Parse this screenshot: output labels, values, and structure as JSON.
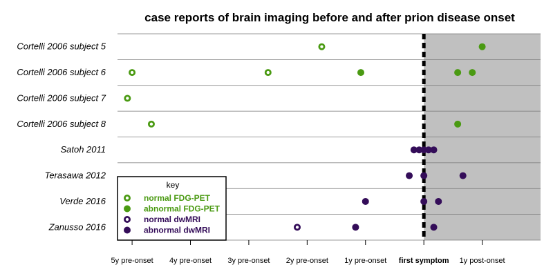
{
  "chart_data": {
    "type": "scatter",
    "title": "case reports of brain imaging before and after prion disease onset",
    "xlim": [
      -5.25,
      2.0
    ],
    "x_ticks": [
      {
        "value": -5,
        "label": "5y pre-onset",
        "bold": false
      },
      {
        "value": -4,
        "label": "4y pre-onset",
        "bold": false
      },
      {
        "value": -3,
        "label": "3y pre-onset",
        "bold": false
      },
      {
        "value": -2,
        "label": "2y pre-onset",
        "bold": false
      },
      {
        "value": -1,
        "label": "1y pre-onset",
        "bold": false
      },
      {
        "value": 0,
        "label": "first symptom",
        "bold": true
      },
      {
        "value": 1,
        "label": "1y post-onset",
        "bold": false
      }
    ],
    "post_onset_shading": {
      "from": 0,
      "to": 2.0,
      "color": "#c0c0c0"
    },
    "onset_line": {
      "x": 0,
      "style": "dashed",
      "color": "#000000"
    },
    "cases": [
      "Cortelli 2006 subject 5",
      "Cortelli 2006 subject 6",
      "Cortelli 2006 subject 7",
      "Cortelli 2006 subject 8",
      "Satoh 2011",
      "Terasawa 2012",
      "Verde 2016",
      "Zanusso 2016"
    ],
    "legend": {
      "title": "key",
      "placement": "bottom-left",
      "entries": [
        {
          "key": "normal_fdg",
          "label": "normal FDG-PET",
          "color": "#4a9a12",
          "filled": false
        },
        {
          "key": "abnormal_fdg",
          "label": "abnormal FDG-PET",
          "color": "#4a9a12",
          "filled": true
        },
        {
          "key": "normal_dw",
          "label": "normal dwMRI",
          "color": "#340d59",
          "filled": false
        },
        {
          "key": "abnormal_dw",
          "label": "abnormal dwMRI",
          "color": "#340d59",
          "filled": true
        }
      ]
    },
    "points": [
      {
        "case": 0,
        "x": -1.75,
        "type": "normal_fdg"
      },
      {
        "case": 0,
        "x": 1.0,
        "type": "abnormal_fdg"
      },
      {
        "case": 1,
        "x": -5.0,
        "type": "normal_fdg"
      },
      {
        "case": 1,
        "x": -2.67,
        "type": "normal_fdg"
      },
      {
        "case": 1,
        "x": -1.08,
        "type": "abnormal_fdg"
      },
      {
        "case": 1,
        "x": 0.58,
        "type": "abnormal_fdg"
      },
      {
        "case": 1,
        "x": 0.83,
        "type": "abnormal_fdg"
      },
      {
        "case": 2,
        "x": -5.08,
        "type": "normal_fdg"
      },
      {
        "case": 3,
        "x": -4.67,
        "type": "normal_fdg"
      },
      {
        "case": 3,
        "x": 0.58,
        "type": "abnormal_fdg"
      },
      {
        "case": 4,
        "x": -0.17,
        "type": "abnormal_dw"
      },
      {
        "case": 4,
        "x": -0.08,
        "type": "abnormal_dw"
      },
      {
        "case": 4,
        "x": 0.0,
        "type": "abnormal_dw"
      },
      {
        "case": 4,
        "x": 0.08,
        "type": "abnormal_dw"
      },
      {
        "case": 4,
        "x": 0.17,
        "type": "abnormal_dw"
      },
      {
        "case": 5,
        "x": -0.25,
        "type": "abnormal_dw"
      },
      {
        "case": 5,
        "x": 0.0,
        "type": "abnormal_dw"
      },
      {
        "case": 5,
        "x": 0.67,
        "type": "abnormal_dw"
      },
      {
        "case": 6,
        "x": -1.0,
        "type": "abnormal_dw"
      },
      {
        "case": 6,
        "x": 0.0,
        "type": "abnormal_dw"
      },
      {
        "case": 6,
        "x": 0.25,
        "type": "abnormal_dw"
      },
      {
        "case": 7,
        "x": -2.17,
        "type": "normal_dw"
      },
      {
        "case": 7,
        "x": -1.17,
        "type": "abnormal_dw"
      },
      {
        "case": 7,
        "x": 0.17,
        "type": "abnormal_dw"
      }
    ]
  }
}
